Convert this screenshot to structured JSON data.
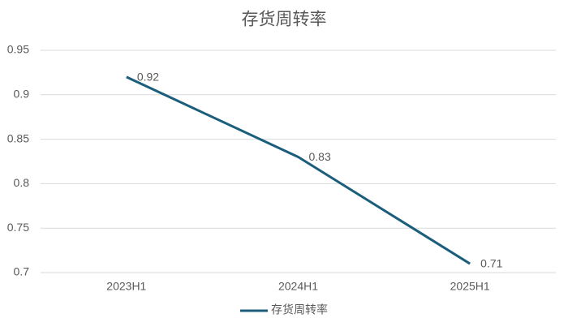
{
  "chart_data": {
    "type": "line",
    "title": "存货周转率",
    "categories": [
      "2023H1",
      "2024H1",
      "2025H1"
    ],
    "series": [
      {
        "name": "存货周转率",
        "color": "#1b5e7c",
        "values": [
          0.92,
          0.83,
          0.71
        ]
      }
    ],
    "ylim": [
      0.7,
      0.95
    ],
    "yticks": [
      0.7,
      0.75,
      0.8,
      0.85,
      0.9,
      0.95
    ],
    "grid": true,
    "legend": "bottom"
  }
}
